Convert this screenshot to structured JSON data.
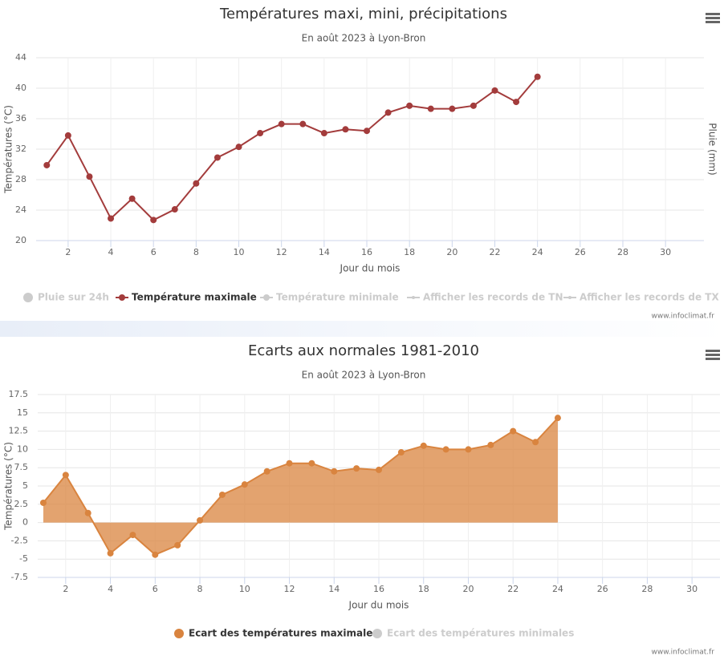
{
  "chart_data": [
    {
      "type": "line",
      "title": "Températures maxi, mini, précipitations",
      "subtitle": "En août 2023 à Lyon-Bron",
      "x_label": "Jour du mois",
      "y_label": "Températures (°C)",
      "y2_label": "Pluie (mm)",
      "x": [
        1,
        2,
        3,
        4,
        5,
        6,
        7,
        8,
        9,
        10,
        11,
        12,
        13,
        14,
        15,
        16,
        17,
        18,
        19,
        20,
        21,
        22,
        23,
        24
      ],
      "xlim": [
        0.5,
        31.8
      ],
      "xticks": [
        2,
        4,
        6,
        8,
        10,
        12,
        14,
        16,
        18,
        20,
        22,
        24,
        26,
        28,
        30
      ],
      "ylim": [
        20,
        44
      ],
      "yticks": [
        20,
        24,
        28,
        32,
        36,
        40,
        44
      ],
      "grid": true,
      "series": [
        {
          "name": "Pluie sur 24h",
          "color": "#cccccc",
          "visible": false
        },
        {
          "name": "Température maximale",
          "color": "#a33c3c",
          "visible": true,
          "values": [
            29.9,
            33.8,
            28.4,
            22.9,
            25.5,
            22.7,
            24.1,
            27.5,
            30.9,
            32.3,
            34.1,
            35.3,
            35.3,
            34.1,
            34.6,
            34.4,
            36.8,
            37.7,
            37.3,
            37.3,
            37.7,
            39.7,
            38.2,
            41.5
          ]
        },
        {
          "name": "Température minimale",
          "color": "#cccccc",
          "visible": false
        },
        {
          "name": "Afficher les records de TN",
          "color": "#cccccc",
          "visible": false
        },
        {
          "name": "Afficher les records de TX",
          "color": "#cccccc",
          "visible": false
        }
      ],
      "credits": "www.infoclimat.fr"
    },
    {
      "type": "area",
      "title": "Ecarts aux normales 1981-2010",
      "subtitle": "En août 2023 à Lyon-Bron",
      "x_label": "Jour du mois",
      "y_label": "Températures (°C)",
      "x": [
        1,
        2,
        3,
        4,
        5,
        6,
        7,
        8,
        9,
        10,
        11,
        12,
        13,
        14,
        15,
        16,
        17,
        18,
        19,
        20,
        21,
        22,
        23,
        24
      ],
      "xlim": [
        0.75,
        31.25
      ],
      "xticks": [
        2,
        4,
        6,
        8,
        10,
        12,
        14,
        16,
        18,
        20,
        22,
        24,
        26,
        28,
        30
      ],
      "ylim": [
        -7.5,
        17.5
      ],
      "yticks": [
        17.5,
        15,
        12.5,
        10,
        7.5,
        5,
        2.5,
        0,
        -2.5,
        -5,
        -7.5
      ],
      "grid": true,
      "series": [
        {
          "name": "Ecart des températures maximales",
          "color": "#d9843f",
          "visible": true,
          "values": [
            2.7,
            6.5,
            1.3,
            -4.2,
            -1.7,
            -4.4,
            -3.1,
            0.3,
            3.8,
            5.2,
            7.0,
            8.1,
            8.1,
            7.0,
            7.4,
            7.2,
            9.6,
            10.5,
            10.0,
            10.0,
            10.6,
            12.5,
            11.0,
            14.3
          ]
        },
        {
          "name": "Ecart des températures minimales",
          "color": "#cccccc",
          "visible": false
        }
      ],
      "credits": "www.infoclimat.fr"
    }
  ]
}
